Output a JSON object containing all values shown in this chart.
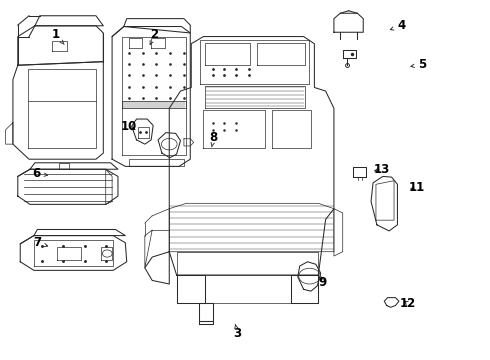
{
  "background_color": "#ffffff",
  "line_color": "#2a2a2a",
  "label_color": "#000000",
  "font_size_labels": 8.5,
  "figsize": [
    4.9,
    3.6
  ],
  "dpi": 100,
  "labels": {
    "1": {
      "text": [
        0.112,
        0.905
      ],
      "arrow": [
        0.13,
        0.878
      ]
    },
    "2": {
      "text": [
        0.315,
        0.905
      ],
      "arrow": [
        0.305,
        0.876
      ]
    },
    "3": {
      "text": [
        0.485,
        0.072
      ],
      "arrow": [
        0.48,
        0.098
      ]
    },
    "4": {
      "text": [
        0.82,
        0.93
      ],
      "arrow": [
        0.79,
        0.916
      ]
    },
    "5": {
      "text": [
        0.862,
        0.822
      ],
      "arrow": [
        0.832,
        0.815
      ]
    },
    "6": {
      "text": [
        0.074,
        0.518
      ],
      "arrow": [
        0.098,
        0.513
      ]
    },
    "7": {
      "text": [
        0.074,
        0.325
      ],
      "arrow": [
        0.098,
        0.315
      ]
    },
    "8": {
      "text": [
        0.436,
        0.618
      ],
      "arrow": [
        0.432,
        0.592
      ]
    },
    "9": {
      "text": [
        0.658,
        0.215
      ],
      "arrow": [
        0.654,
        0.24
      ]
    },
    "10": {
      "text": [
        0.262,
        0.648
      ],
      "arrow": [
        0.282,
        0.637
      ]
    },
    "11": {
      "text": [
        0.852,
        0.48
      ],
      "arrow": [
        0.832,
        0.472
      ]
    },
    "12": {
      "text": [
        0.834,
        0.155
      ],
      "arrow": [
        0.82,
        0.168
      ]
    },
    "13": {
      "text": [
        0.78,
        0.53
      ],
      "arrow": [
        0.758,
        0.523
      ]
    }
  }
}
